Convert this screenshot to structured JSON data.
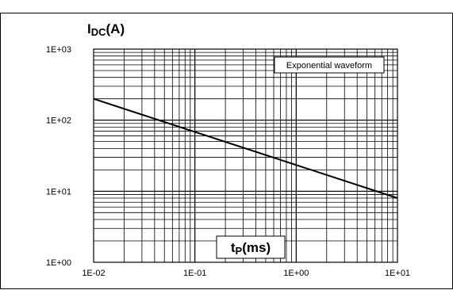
{
  "chart_data": {
    "type": "line",
    "x_scale": "log",
    "y_scale": "log",
    "xlim": [
      0.01,
      10
    ],
    "ylim": [
      1,
      1000
    ],
    "x_tick_labels": [
      "1E-02",
      "1E-01",
      "1E+00",
      "1E+01"
    ],
    "y_tick_labels": [
      "1E+00",
      "1E+01",
      "1E+02",
      "1E+03"
    ],
    "ylabel": {
      "main": "I",
      "sub": "DC",
      "suffix": "(A)"
    },
    "xlabel": {
      "main": "t",
      "sub": "P",
      "suffix": "(ms)"
    },
    "legend": "Exponential waveform",
    "legend_position": "top-right",
    "grid": true,
    "series": [
      {
        "x": [
          0.01,
          10
        ],
        "y": [
          200,
          8
        ],
        "color": "#000000"
      }
    ]
  }
}
